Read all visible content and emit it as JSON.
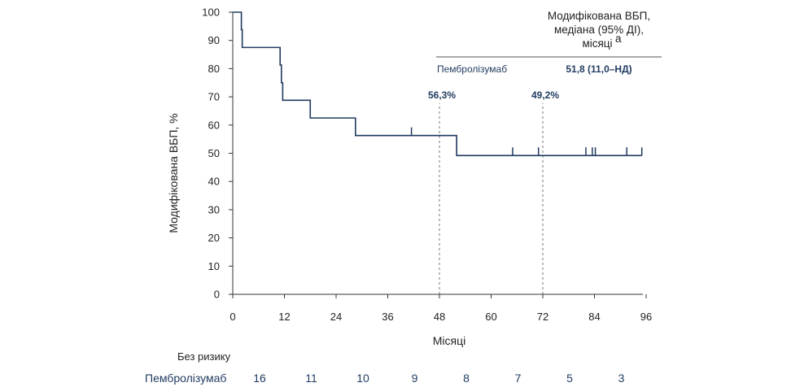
{
  "colors": {
    "curve": "#1f3a5f",
    "axis": "#333333",
    "ref_line": "#777777",
    "text_blue": "#1f3a5f"
  },
  "chart_data": {
    "type": "line",
    "subtype": "kaplan-meier",
    "xlabel": "Місяці",
    "ylabel": "Модифікована ВБП, %",
    "xlim": [
      0,
      96
    ],
    "ylim": [
      0,
      100
    ],
    "x_ticks": [
      0,
      12,
      24,
      36,
      48,
      60,
      72,
      84,
      96
    ],
    "x_tick_labels": [
      "0",
      "12",
      "24",
      "36",
      "48",
      "60",
      "72",
      "84",
      "96"
    ],
    "y_ticks": [
      0,
      10,
      20,
      30,
      40,
      50,
      60,
      70,
      80,
      90,
      100
    ],
    "y_tick_labels": [
      "0",
      "10",
      "20",
      "30",
      "40",
      "50",
      "60",
      "70",
      "80",
      "90",
      "100"
    ],
    "series": [
      {
        "name": "Пембролізумаб",
        "steps": [
          [
            0,
            100
          ],
          [
            2,
            93.8
          ],
          [
            2.2,
            87.5
          ],
          [
            11,
            81.3
          ],
          [
            11.3,
            75
          ],
          [
            11.6,
            68.8
          ],
          [
            18,
            62.5
          ],
          [
            28.5,
            56.3
          ],
          [
            52,
            49.2
          ],
          [
            95,
            49.2
          ]
        ],
        "censor_x": [
          41.5,
          65,
          71,
          82,
          83.5,
          84.2,
          91.5,
          95
        ],
        "censor_y": [
          56.3,
          49.2,
          49.2,
          49.2,
          49.2,
          49.2,
          49.2,
          49.2
        ]
      }
    ],
    "reference_lines": [
      {
        "x": 48,
        "y": 56.3,
        "label": "56,3%"
      },
      {
        "x": 72,
        "y": 49.2,
        "label": "49,2%"
      }
    ],
    "legend": {
      "header_lines": [
        "Модифікована ВБП,",
        "медіана (95% ДІ),",
        "місяці"
      ],
      "header_sup": "a",
      "row_name": "Пембролізумаб",
      "row_value": "51,8 (11,0–НД)"
    },
    "risk_table": {
      "header": "Без ризику",
      "row_label": "Пембролізумаб",
      "values": [
        "16",
        "11",
        "10",
        "9",
        "8",
        "7",
        "5",
        "3"
      ]
    }
  }
}
